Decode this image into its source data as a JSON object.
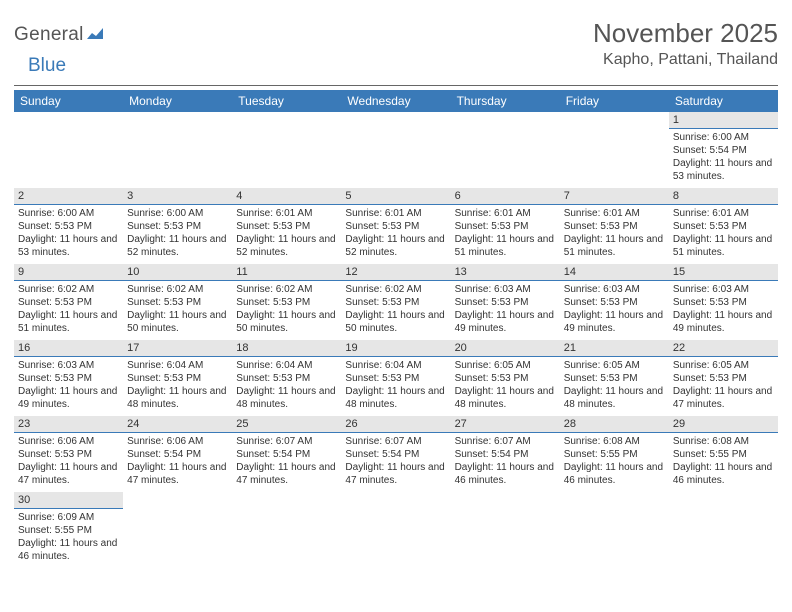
{
  "logo": {
    "text1": "General",
    "text2": "Blue"
  },
  "title": "November 2025",
  "location": "Kapho, Pattani, Thailand",
  "colors": {
    "header_bg": "#3a7ab8",
    "header_fg": "#ffffff",
    "daynum_bg": "#e6e6e6",
    "cell_border": "#3a7ab8",
    "text": "#333333",
    "page_bg": "#ffffff"
  },
  "week_header": [
    "Sunday",
    "Monday",
    "Tuesday",
    "Wednesday",
    "Thursday",
    "Friday",
    "Saturday"
  ],
  "first_weekday": 6,
  "days_in_month": 30,
  "days": {
    "1": {
      "sunrise": "6:00 AM",
      "sunset": "5:54 PM",
      "daylight": "11 hours and 53 minutes."
    },
    "2": {
      "sunrise": "6:00 AM",
      "sunset": "5:53 PM",
      "daylight": "11 hours and 53 minutes."
    },
    "3": {
      "sunrise": "6:00 AM",
      "sunset": "5:53 PM",
      "daylight": "11 hours and 52 minutes."
    },
    "4": {
      "sunrise": "6:01 AM",
      "sunset": "5:53 PM",
      "daylight": "11 hours and 52 minutes."
    },
    "5": {
      "sunrise": "6:01 AM",
      "sunset": "5:53 PM",
      "daylight": "11 hours and 52 minutes."
    },
    "6": {
      "sunrise": "6:01 AM",
      "sunset": "5:53 PM",
      "daylight": "11 hours and 51 minutes."
    },
    "7": {
      "sunrise": "6:01 AM",
      "sunset": "5:53 PM",
      "daylight": "11 hours and 51 minutes."
    },
    "8": {
      "sunrise": "6:01 AM",
      "sunset": "5:53 PM",
      "daylight": "11 hours and 51 minutes."
    },
    "9": {
      "sunrise": "6:02 AM",
      "sunset": "5:53 PM",
      "daylight": "11 hours and 51 minutes."
    },
    "10": {
      "sunrise": "6:02 AM",
      "sunset": "5:53 PM",
      "daylight": "11 hours and 50 minutes."
    },
    "11": {
      "sunrise": "6:02 AM",
      "sunset": "5:53 PM",
      "daylight": "11 hours and 50 minutes."
    },
    "12": {
      "sunrise": "6:02 AM",
      "sunset": "5:53 PM",
      "daylight": "11 hours and 50 minutes."
    },
    "13": {
      "sunrise": "6:03 AM",
      "sunset": "5:53 PM",
      "daylight": "11 hours and 49 minutes."
    },
    "14": {
      "sunrise": "6:03 AM",
      "sunset": "5:53 PM",
      "daylight": "11 hours and 49 minutes."
    },
    "15": {
      "sunrise": "6:03 AM",
      "sunset": "5:53 PM",
      "daylight": "11 hours and 49 minutes."
    },
    "16": {
      "sunrise": "6:03 AM",
      "sunset": "5:53 PM",
      "daylight": "11 hours and 49 minutes."
    },
    "17": {
      "sunrise": "6:04 AM",
      "sunset": "5:53 PM",
      "daylight": "11 hours and 48 minutes."
    },
    "18": {
      "sunrise": "6:04 AM",
      "sunset": "5:53 PM",
      "daylight": "11 hours and 48 minutes."
    },
    "19": {
      "sunrise": "6:04 AM",
      "sunset": "5:53 PM",
      "daylight": "11 hours and 48 minutes."
    },
    "20": {
      "sunrise": "6:05 AM",
      "sunset": "5:53 PM",
      "daylight": "11 hours and 48 minutes."
    },
    "21": {
      "sunrise": "6:05 AM",
      "sunset": "5:53 PM",
      "daylight": "11 hours and 48 minutes."
    },
    "22": {
      "sunrise": "6:05 AM",
      "sunset": "5:53 PM",
      "daylight": "11 hours and 47 minutes."
    },
    "23": {
      "sunrise": "6:06 AM",
      "sunset": "5:53 PM",
      "daylight": "11 hours and 47 minutes."
    },
    "24": {
      "sunrise": "6:06 AM",
      "sunset": "5:54 PM",
      "daylight": "11 hours and 47 minutes."
    },
    "25": {
      "sunrise": "6:07 AM",
      "sunset": "5:54 PM",
      "daylight": "11 hours and 47 minutes."
    },
    "26": {
      "sunrise": "6:07 AM",
      "sunset": "5:54 PM",
      "daylight": "11 hours and 47 minutes."
    },
    "27": {
      "sunrise": "6:07 AM",
      "sunset": "5:54 PM",
      "daylight": "11 hours and 46 minutes."
    },
    "28": {
      "sunrise": "6:08 AM",
      "sunset": "5:55 PM",
      "daylight": "11 hours and 46 minutes."
    },
    "29": {
      "sunrise": "6:08 AM",
      "sunset": "5:55 PM",
      "daylight": "11 hours and 46 minutes."
    },
    "30": {
      "sunrise": "6:09 AM",
      "sunset": "5:55 PM",
      "daylight": "11 hours and 46 minutes."
    }
  },
  "labels": {
    "sunrise": "Sunrise:",
    "sunset": "Sunset:",
    "daylight": "Daylight:"
  }
}
